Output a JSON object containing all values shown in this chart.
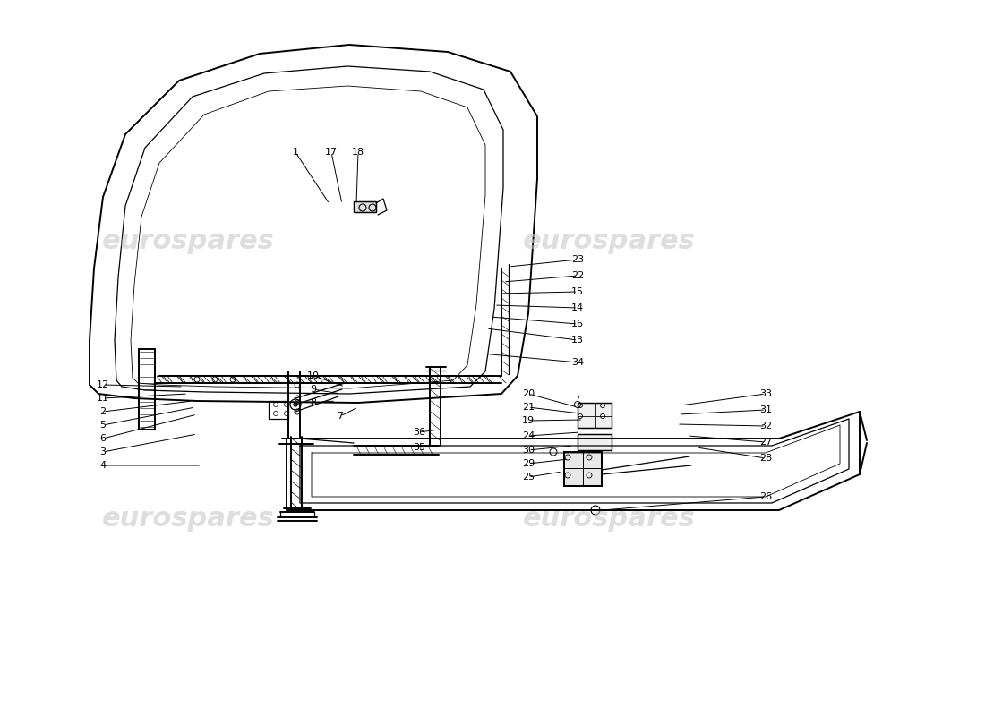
{
  "background_color": "#ffffff",
  "line_color": "#000000",
  "watermark_color": "#c8c8c8",
  "fig_width": 11.0,
  "fig_height": 8.0,
  "dpi": 100,
  "labels": [
    [
      1,
      330,
      170,
      368,
      228
    ],
    [
      17,
      370,
      170,
      382,
      228
    ],
    [
      18,
      400,
      170,
      398,
      228
    ],
    [
      23,
      645,
      290,
      568,
      298
    ],
    [
      22,
      645,
      308,
      562,
      315
    ],
    [
      15,
      645,
      326,
      557,
      328
    ],
    [
      14,
      645,
      344,
      552,
      341
    ],
    [
      16,
      645,
      362,
      547,
      354
    ],
    [
      13,
      645,
      380,
      543,
      367
    ],
    [
      34,
      645,
      405,
      538,
      395
    ],
    [
      10,
      350,
      420,
      385,
      432
    ],
    [
      9,
      350,
      435,
      380,
      440
    ],
    [
      8,
      350,
      450,
      375,
      448
    ],
    [
      7,
      380,
      465,
      400,
      455
    ],
    [
      12,
      115,
      430,
      205,
      432
    ],
    [
      11,
      115,
      445,
      210,
      440
    ],
    [
      2,
      115,
      460,
      215,
      448
    ],
    [
      5,
      115,
      475,
      218,
      455
    ],
    [
      6,
      115,
      490,
      220,
      463
    ],
    [
      3,
      115,
      505,
      220,
      485
    ],
    [
      4,
      115,
      520,
      225,
      520
    ],
    [
      20,
      590,
      440,
      645,
      455
    ],
    [
      21,
      590,
      455,
      648,
      462
    ],
    [
      19,
      590,
      470,
      651,
      469
    ],
    [
      24,
      590,
      487,
      648,
      483
    ],
    [
      30,
      590,
      503,
      640,
      498
    ],
    [
      29,
      590,
      518,
      635,
      513
    ],
    [
      25,
      590,
      533,
      628,
      527
    ],
    [
      33,
      855,
      440,
      760,
      453
    ],
    [
      31,
      855,
      458,
      758,
      463
    ],
    [
      32,
      855,
      476,
      756,
      474
    ],
    [
      27,
      855,
      494,
      768,
      487
    ],
    [
      28,
      855,
      512,
      778,
      500
    ],
    [
      26,
      855,
      555,
      673,
      570
    ],
    [
      35,
      468,
      500,
      490,
      498
    ],
    [
      36,
      468,
      483,
      490,
      480
    ]
  ]
}
